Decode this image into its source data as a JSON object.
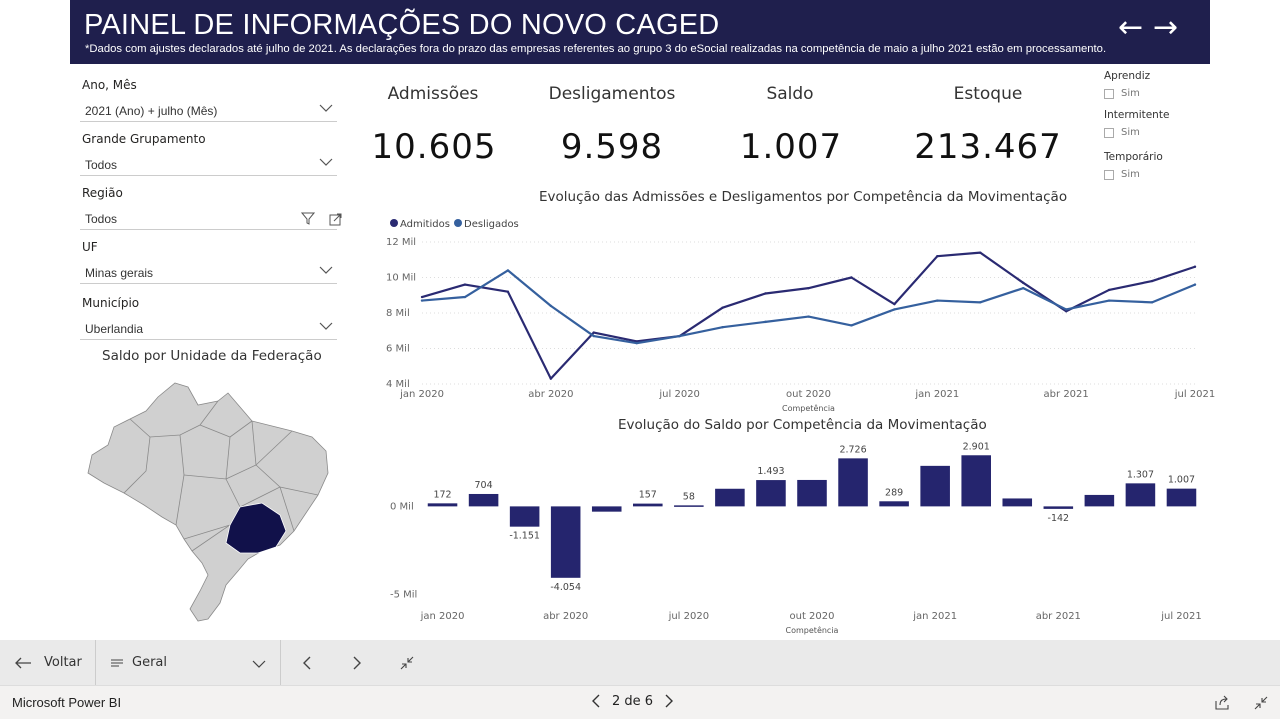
{
  "header": {
    "title": "PAINEL DE INFORMAÇÕES DO NOVO CAGED",
    "subtitle": "*Dados com ajustes declarados até julho de 2021. As declarações fora do prazo das empresas referentes ao grupo 3 do eSocial realizadas na competência de maio a julho 2021 estão em processamento.",
    "back_arrow": "←",
    "forward_arrow": "→"
  },
  "slicers": [
    {
      "label": "Ano, Mês",
      "value": "2021 (Ano) + julho (Mês)"
    },
    {
      "label": "Grande Grupamento",
      "value": "Todos"
    },
    {
      "label": "Região",
      "value": "Todos"
    },
    {
      "label": "UF",
      "value": "Minas gerais"
    },
    {
      "label": "Município",
      "value": "Uberlandia"
    }
  ],
  "kpis": [
    {
      "label": "Admissões",
      "value": "10.605"
    },
    {
      "label": "Desligamentos",
      "value": "9.598"
    },
    {
      "label": "Saldo",
      "value": "1.007"
    },
    {
      "label": "Estoque",
      "value": "213.467"
    }
  ],
  "checks": [
    {
      "title": "Aprendiz",
      "option": "Sim"
    },
    {
      "title": "Intermitente",
      "option": "Sim"
    },
    {
      "title": "Temporário",
      "option": "Sim"
    }
  ],
  "map": {
    "title": "Saldo por Unidade da Federação",
    "highlight_color": "#11114a",
    "base_color": "#d0d0d0"
  },
  "colors": {
    "admitidos": "#2a2a72",
    "desligados": "#35609e",
    "bar": "#25256e",
    "header_bg": "#1f1f4d"
  },
  "chart_data": [
    {
      "type": "line",
      "title": "Evolução das Admissões e Desligamentos por Competência da Movimentação",
      "xlabel": "Competência",
      "ylabel": "",
      "x": [
        "jan 2020",
        "fev 2020",
        "mar 2020",
        "abr 2020",
        "mai 2020",
        "jun 2020",
        "jul 2020",
        "ago 2020",
        "set 2020",
        "out 2020",
        "nov 2020",
        "dez 2020",
        "jan 2021",
        "fev 2021",
        "mar 2021",
        "abr 2021",
        "mai 2021",
        "jun 2021",
        "jul 2021"
      ],
      "x_tick_labels": [
        "jan 2020",
        "abr 2020",
        "jul 2020",
        "out 2020",
        "jan 2021",
        "abr 2021",
        "jul 2021"
      ],
      "y_tick_labels": [
        "4 Mil",
        "6 Mil",
        "8 Mil",
        "10 Mil",
        "12 Mil"
      ],
      "ylim": [
        4000,
        12000
      ],
      "legend": "top-left",
      "series": [
        {
          "name": "Admitidos",
          "values": [
            8900,
            9600,
            9200,
            4300,
            6900,
            6400,
            6700,
            8300,
            9100,
            9400,
            10000,
            8500,
            11200,
            11400,
            9700,
            8100,
            9300,
            9800,
            10605
          ]
        },
        {
          "name": "Desligados",
          "values": [
            8700,
            8900,
            10400,
            8400,
            6700,
            6300,
            6700,
            7200,
            7500,
            7800,
            7300,
            8200,
            8700,
            8600,
            9400,
            8200,
            8700,
            8600,
            9598
          ]
        }
      ]
    },
    {
      "type": "bar",
      "title": "Evolução do Saldo por Competência da Movimentação",
      "xlabel": "Competência",
      "ylabel": "",
      "categories": [
        "jan 2020",
        "fev 2020",
        "mar 2020",
        "abr 2020",
        "mai 2020",
        "jun 2020",
        "jul 2020",
        "ago 2020",
        "set 2020",
        "out 2020",
        "nov 2020",
        "dez 2020",
        "jan 2021",
        "fev 2021",
        "mar 2021",
        "abr 2021",
        "mai 2021",
        "jun 2021",
        "jul 2021"
      ],
      "x_tick_labels": [
        "jan 2020",
        "abr 2020",
        "jul 2020",
        "out 2020",
        "jan 2021",
        "abr 2021",
        "jul 2021"
      ],
      "y_tick_labels": [
        "-5 Mil",
        "0 Mil"
      ],
      "values": [
        172,
        704,
        -1151,
        -4054,
        -300,
        157,
        58,
        1000,
        1493,
        1500,
        2726,
        289,
        2300,
        2901,
        450,
        -142,
        650,
        1307,
        1007
      ],
      "data_labels": [
        "172",
        "704",
        "-1.151",
        "-4.054",
        "",
        "157",
        "58",
        "",
        "1.493",
        "",
        "2.726",
        "289",
        "",
        "2.901",
        "",
        "-142",
        "",
        "1.307",
        "1.007"
      ],
      "ylim": [
        -5200,
        3200
      ]
    }
  ],
  "bottom_bar": {
    "back_label": "Voltar",
    "page_selector": "Geral",
    "pager": "2 de 6",
    "app_name": "Microsoft Power BI"
  }
}
